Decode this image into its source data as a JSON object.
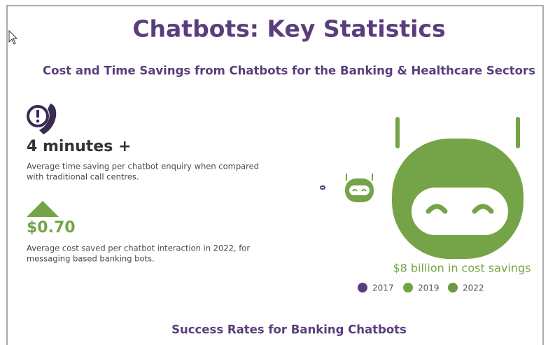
{
  "header": {
    "title": "Chatbots: Key Statistics",
    "subtitle": "Cost and Time Savings from Chatbots for the Banking & Healthcare Sectors"
  },
  "stats": [
    {
      "value": "4 minutes +",
      "description": [
        "Average time saving per chatbot enquiry when compared",
        "with traditional call centres."
      ]
    },
    {
      "value": "$0.70",
      "description": [
        "Average cost saved per chatbot interaction in 2022, for",
        "messaging based banking bots."
      ]
    }
  ],
  "robots": {
    "caption": "$8 billion in cost savings",
    "legend": [
      "2017",
      "2019",
      "2022"
    ]
  },
  "footer": {
    "heading": "Success Rates for Banking Chatbots"
  }
}
